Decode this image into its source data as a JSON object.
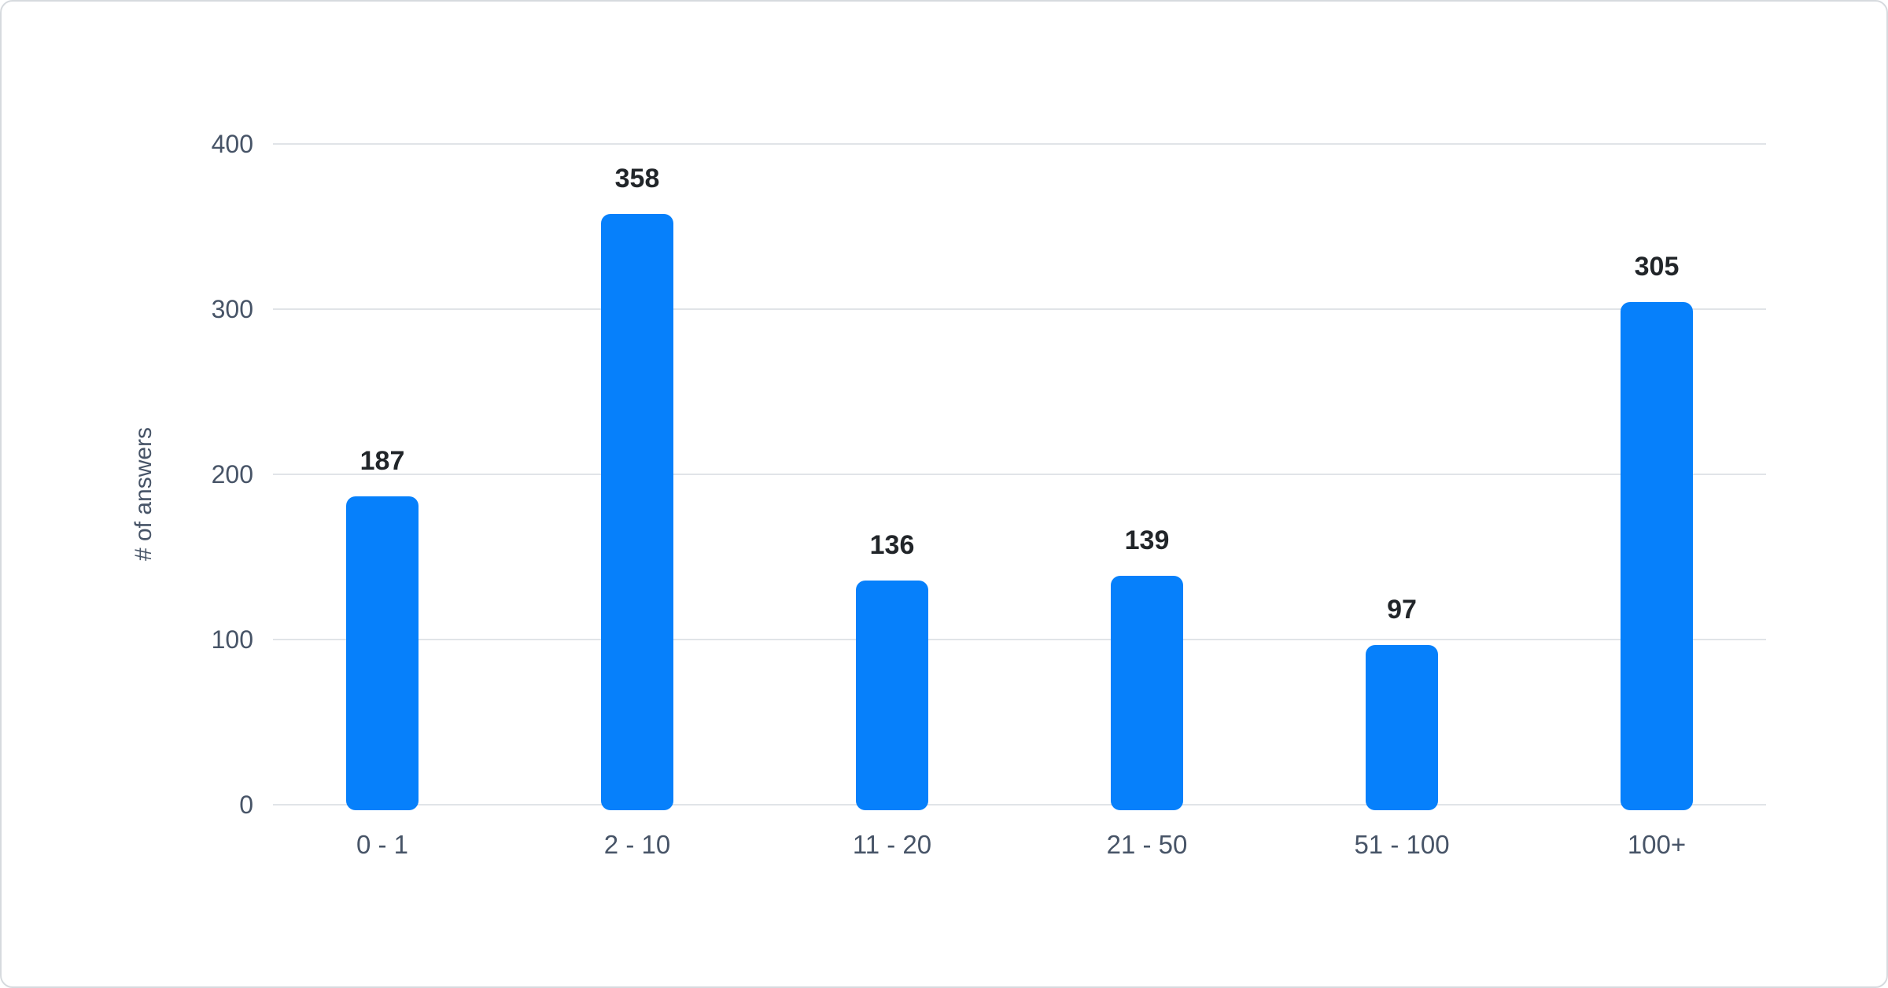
{
  "chart_data": {
    "type": "bar",
    "title": "",
    "xlabel": "",
    "ylabel": "# of answers",
    "categories": [
      "0 - 1",
      "2 - 10",
      "11 - 20",
      "21 - 50",
      "51 - 100",
      "100+"
    ],
    "values": [
      187,
      358,
      136,
      139,
      97,
      305
    ],
    "yticks": [
      0,
      100,
      200,
      300,
      400
    ],
    "ylim": [
      0,
      400
    ],
    "grid": true,
    "legend_position": "none",
    "colors": {
      "bar": "#0680fb",
      "gridline": "#e1e4e8",
      "axis_text": "#475467",
      "value_label_text": "#212529",
      "card_border": "#d6dade",
      "background": "#ffffff"
    }
  }
}
